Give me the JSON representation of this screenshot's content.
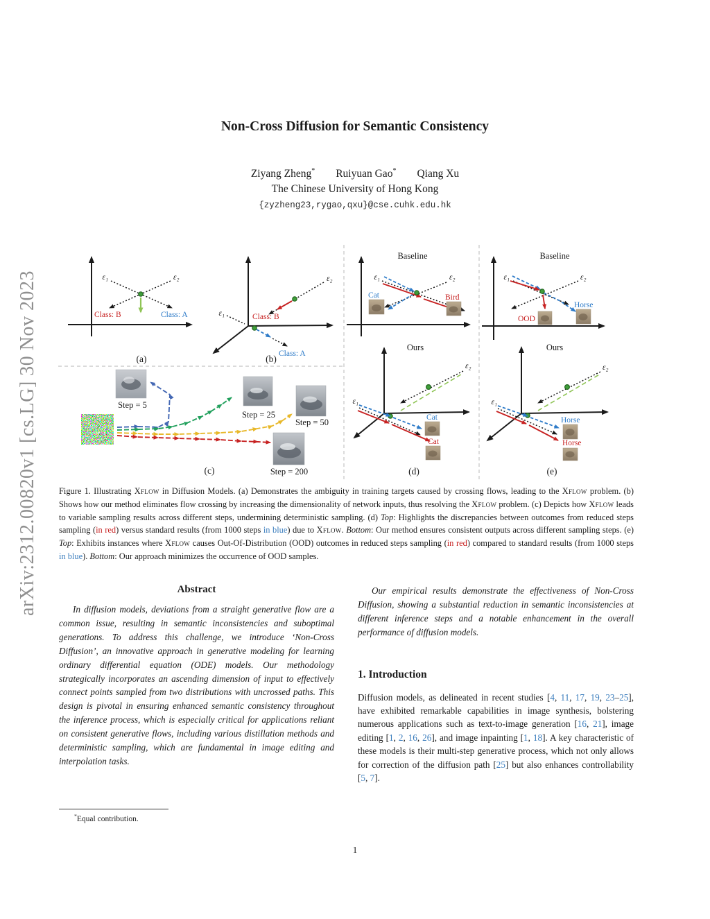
{
  "colors": {
    "ink": "#1a1a1a",
    "red": "#c72222",
    "blue": "#2e7bc8",
    "link": "#3b7dbd",
    "green": "#21a05c",
    "yellow": "#e8b82a",
    "steel": "#4468b4",
    "lgreen": "#8fc455"
  },
  "sidebar": {
    "text": "arXiv:2312.00820v1  [cs.LG]  30 Nov 2023"
  },
  "header": {
    "title": "Non-Cross Diffusion for Semantic Consistency",
    "authors": [
      {
        "name": "Ziyang Zheng",
        "mark": "*"
      },
      {
        "name": "Ruiyuan Gao",
        "mark": "*"
      },
      {
        "name": "Qiang Xu",
        "mark": ""
      }
    ],
    "affiliation": "The Chinese University of Hong Kong",
    "email": "{zyzheng23,rygao,qxu}@cse.cuhk.edu.hk"
  },
  "figure": {
    "panels": {
      "a": {
        "tag": "(a)",
        "eps1": "ε₁",
        "eps2": "ε₂",
        "class_b": "Class: B",
        "class_a": "Class: A"
      },
      "b": {
        "tag": "(b)",
        "eps1": "ε₁",
        "eps2": "ε₂",
        "class_b": "Class: B",
        "class_a": "Class: A"
      },
      "c": {
        "tag": "(c)",
        "steps": [
          "Step = 5",
          "Step = 25",
          "Step = 50",
          "Step = 200"
        ]
      },
      "d": {
        "tag": "(d)",
        "top_title": "Baseline",
        "bottom_title": "Ours",
        "eps1": "ε₁",
        "eps2": "ε₂",
        "top_left_label": "Cat",
        "top_right_label": "Bird",
        "bottom_label_blue": "Cat",
        "bottom_label_red": "Cat"
      },
      "e": {
        "tag": "(e)",
        "top_title": "Baseline",
        "bottom_title": "Ours",
        "eps1": "ε₁",
        "eps2": "ε₂",
        "ood_label": "OOD",
        "top_right_label": "Horse",
        "bottom_label_blue": "Horse",
        "bottom_label_red": "Horse"
      }
    },
    "caption_segments": [
      {
        "t": "Figure 1. Illustrating "
      },
      {
        "t": "Xflow",
        "c": "sc"
      },
      {
        "t": " in Diffusion Models.  (a) Demonstrates the ambiguity in training targets caused by crossing flows, leading to the "
      },
      {
        "t": "Xflow",
        "c": "sc"
      },
      {
        "t": " problem.  (b) Shows how our method eliminates flow crossing by increasing the dimensionality of network inputs, thus resolving the "
      },
      {
        "t": "Xflow",
        "c": "sc"
      },
      {
        "t": " problem. (c) Depicts how "
      },
      {
        "t": "Xflow",
        "c": "sc"
      },
      {
        "t": " leads to variable sampling results across different steps, undermining deterministic sampling.  (d) "
      },
      {
        "t": "Top",
        "c": "it"
      },
      {
        "t": ": Highlights the discrepancies between outcomes from reduced steps sampling ("
      },
      {
        "t": "in red",
        "c": "red"
      },
      {
        "t": ") versus standard results (from 1000 steps "
      },
      {
        "t": "in blue",
        "c": "blue"
      },
      {
        "t": ") due to "
      },
      {
        "t": "Xflow",
        "c": "sc"
      },
      {
        "t": ".  "
      },
      {
        "t": "Bottom",
        "c": "it"
      },
      {
        "t": ":  Our method ensures consistent outputs across different sampling steps.  (e) "
      },
      {
        "t": "Top",
        "c": "it"
      },
      {
        "t": ":  Exhibits instances where "
      },
      {
        "t": "Xflow",
        "c": "sc"
      },
      {
        "t": " causes Out-Of-Distribution (OOD) outcomes in reduced steps sampling ("
      },
      {
        "t": "in red",
        "c": "red"
      },
      {
        "t": ") compared to standard results (from 1000 steps "
      },
      {
        "t": "in blue",
        "c": "blue"
      },
      {
        "t": "). "
      },
      {
        "t": "Bottom",
        "c": "it"
      },
      {
        "t": ": Our approach minimizes the occurrence of OOD samples."
      }
    ]
  },
  "abstract": {
    "heading": "Abstract",
    "paragraph": "In diffusion models, deviations from a straight generative flow are a common issue, resulting in semantic inconsistencies and suboptimal generations. To address this challenge, we introduce ‘Non-Cross Diffusion’, an innovative approach in generative modeling for learning ordinary differential equation (ODE) models. Our methodology strategically incorporates an ascending dimension of input to effectively connect points sampled from two distributions with uncrossed paths. This design is pivotal in ensuring enhanced semantic consistency throughout the inference process, which is especially critical for applications reliant on consistent generative flows, including various distillation methods and deterministic sampling, which are fundamental in image editing and interpolation tasks."
  },
  "right_column": {
    "paragraph": "Our empirical results demonstrate the effectiveness of Non-Cross Diffusion, showing a substantial reduction in semantic inconsistencies at different inference steps and a notable enhancement in the overall performance of diffusion models.",
    "intro_heading": "1. Introduction",
    "intro_segments": [
      {
        "t": "Diffusion models, as delineated in recent studies ["
      },
      {
        "t": "4",
        "c": "blue"
      },
      {
        "t": ", "
      },
      {
        "t": "11",
        "c": "blue"
      },
      {
        "t": ", "
      },
      {
        "t": "17",
        "c": "blue"
      },
      {
        "t": ", "
      },
      {
        "t": "19",
        "c": "blue"
      },
      {
        "t": ", "
      },
      {
        "t": "23",
        "c": "blue"
      },
      {
        "t": "–"
      },
      {
        "t": "25",
        "c": "blue"
      },
      {
        "t": "], have exhibited remarkable capabilities in image synthesis, bolstering numerous applications such as text-to-image generation ["
      },
      {
        "t": "16",
        "c": "blue"
      },
      {
        "t": ", "
      },
      {
        "t": "21",
        "c": "blue"
      },
      {
        "t": "], image editing ["
      },
      {
        "t": "1",
        "c": "blue"
      },
      {
        "t": ", "
      },
      {
        "t": "2",
        "c": "blue"
      },
      {
        "t": ", "
      },
      {
        "t": "16",
        "c": "blue"
      },
      {
        "t": ", "
      },
      {
        "t": "26",
        "c": "blue"
      },
      {
        "t": "], and image inpainting ["
      },
      {
        "t": "1",
        "c": "blue"
      },
      {
        "t": ", "
      },
      {
        "t": "18",
        "c": "blue"
      },
      {
        "t": "].  A key characteristic of these models is their multi-step generative process, which not only allows for correction of the diffusion path ["
      },
      {
        "t": "25",
        "c": "blue"
      },
      {
        "t": "] but also enhances controllability ["
      },
      {
        "t": "5",
        "c": "blue"
      },
      {
        "t": ", "
      },
      {
        "t": "7",
        "c": "blue"
      },
      {
        "t": "]."
      }
    ]
  },
  "footnote": {
    "segments": [
      {
        "t": "*",
        "c": "sup"
      },
      {
        "t": "Equal contribution."
      }
    ]
  },
  "page_number": "1"
}
